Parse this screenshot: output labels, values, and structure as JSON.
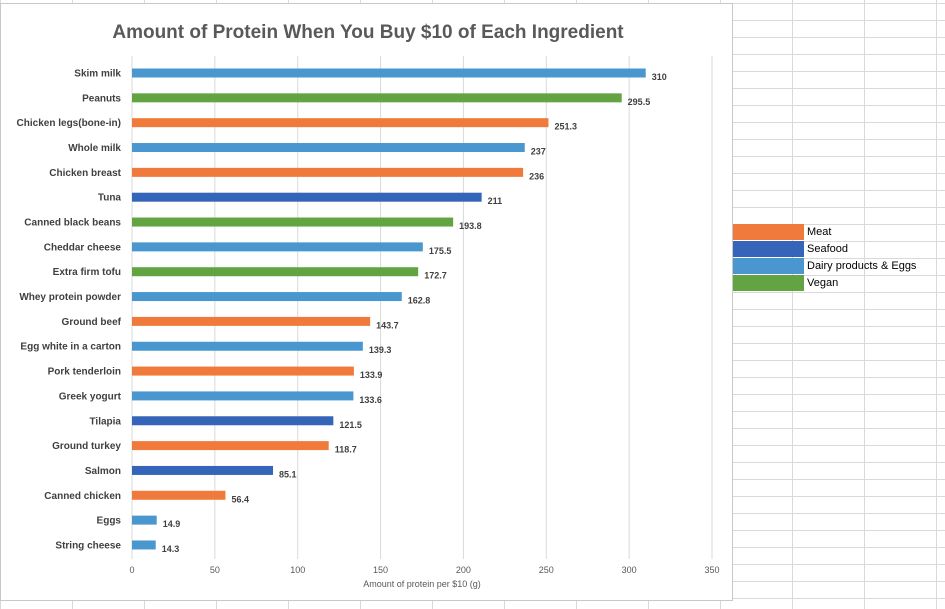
{
  "chart_data": {
    "type": "bar",
    "orientation": "horizontal",
    "title": "Amount of Protein When You Buy $10 of  Each Ingredient",
    "xlabel": "Amount of protein per $10 (g)",
    "ylabel": "",
    "xlim": [
      0,
      350
    ],
    "xticks": [
      0,
      50,
      100,
      150,
      200,
      250,
      300,
      350
    ],
    "grid": true,
    "bars": [
      {
        "label": "Skim milk",
        "value": 310,
        "value_label": "310",
        "group": "Dairy products & Eggs"
      },
      {
        "label": "Peanuts",
        "value": 295.5,
        "value_label": "295.5",
        "group": "Vegan"
      },
      {
        "label": "Chicken legs(bone-in)",
        "value": 251.3,
        "value_label": "251.3",
        "group": "Meat"
      },
      {
        "label": "Whole milk",
        "value": 237,
        "value_label": "237",
        "group": "Dairy products & Eggs"
      },
      {
        "label": "Chicken breast",
        "value": 236,
        "value_label": "236",
        "group": "Meat"
      },
      {
        "label": "Tuna",
        "value": 211,
        "value_label": "211",
        "group": "Seafood"
      },
      {
        "label": "Canned black beans",
        "value": 193.8,
        "value_label": "193.8",
        "group": "Vegan"
      },
      {
        "label": "Cheddar cheese",
        "value": 175.5,
        "value_label": "175.5",
        "group": "Dairy products & Eggs"
      },
      {
        "label": "Extra firm tofu",
        "value": 172.7,
        "value_label": "172.7",
        "group": "Vegan"
      },
      {
        "label": "Whey protein powder",
        "value": 162.8,
        "value_label": "162.8",
        "group": "Dairy products & Eggs"
      },
      {
        "label": "Ground beef",
        "value": 143.7,
        "value_label": "143.7",
        "group": "Meat"
      },
      {
        "label": "Egg white in a carton",
        "value": 139.3,
        "value_label": "139.3",
        "group": "Dairy products & Eggs"
      },
      {
        "label": "Pork tenderloin",
        "value": 133.9,
        "value_label": "133.9",
        "group": "Meat"
      },
      {
        "label": "Greek yogurt",
        "value": 133.6,
        "value_label": "133.6",
        "group": "Dairy products & Eggs"
      },
      {
        "label": "Tilapia",
        "value": 121.5,
        "value_label": "121.5",
        "group": "Seafood"
      },
      {
        "label": "Ground turkey",
        "value": 118.7,
        "value_label": "118.7",
        "group": "Meat"
      },
      {
        "label": "Salmon",
        "value": 85.1,
        "value_label": "85.1",
        "group": "Seafood"
      },
      {
        "label": "Canned chicken",
        "value": 56.4,
        "value_label": "56.4",
        "group": "Meat"
      },
      {
        "label": "Eggs",
        "value": 14.9,
        "value_label": "14.9",
        "group": "Dairy products & Eggs"
      },
      {
        "label": "String cheese",
        "value": 14.3,
        "value_label": "14.3",
        "group": "Dairy products & Eggs"
      }
    ],
    "legend": [
      {
        "name": "Meat",
        "color": "#f07a3c"
      },
      {
        "name": "Seafood",
        "color": "#3565b8"
      },
      {
        "name": "Dairy products & Eggs",
        "color": "#4a97d0"
      },
      {
        "name": "Vegan",
        "color": "#62a342"
      }
    ],
    "legend_placement": "right, outside chart in spreadsheet cells"
  }
}
